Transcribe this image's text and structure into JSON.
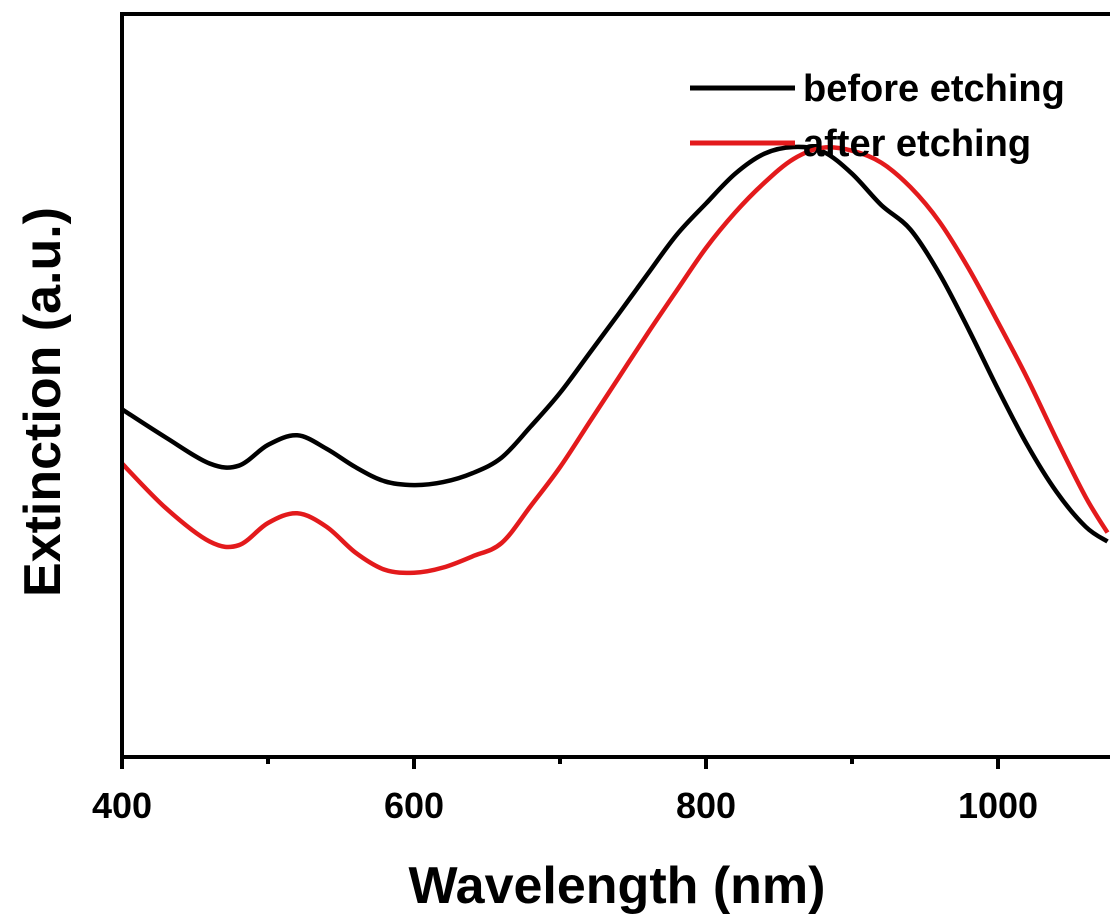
{
  "chart_data": {
    "type": "line",
    "xlabel": "Wavelength (nm)",
    "ylabel": "Extinction (a.u.)",
    "xlim": [
      400,
      1075
    ],
    "ylim": [
      0,
      1.0
    ],
    "x_ticks_major": [
      400,
      600,
      800,
      1000
    ],
    "x_tick_labels": [
      "400",
      "600",
      "800",
      "1000"
    ],
    "x_ticks_minor": [
      500,
      700,
      900
    ],
    "y_ticks": [],
    "grid": false,
    "legend_position": "top-right",
    "series": [
      {
        "name": "before etching",
        "color": "#000000",
        "x": [
          400,
          430,
          460,
          480,
          500,
          520,
          540,
          560,
          580,
          600,
          620,
          640,
          660,
          680,
          700,
          720,
          740,
          760,
          780,
          800,
          820,
          840,
          860,
          880,
          900,
          920,
          940,
          960,
          980,
          1000,
          1020,
          1040,
          1060,
          1075
        ],
        "y": [
          0.468,
          0.43,
          0.395,
          0.392,
          0.42,
          0.433,
          0.415,
          0.39,
          0.371,
          0.366,
          0.37,
          0.382,
          0.403,
          0.445,
          0.49,
          0.543,
          0.596,
          0.65,
          0.703,
          0.745,
          0.785,
          0.812,
          0.821,
          0.815,
          0.785,
          0.743,
          0.71,
          0.65,
          0.575,
          0.495,
          0.42,
          0.357,
          0.31,
          0.29
        ]
      },
      {
        "name": "after etching",
        "color": "#e31a1c",
        "x": [
          400,
          430,
          460,
          480,
          500,
          520,
          540,
          560,
          580,
          600,
          620,
          640,
          660,
          680,
          700,
          720,
          740,
          760,
          780,
          800,
          820,
          840,
          860,
          880,
          900,
          920,
          940,
          960,
          980,
          1000,
          1020,
          1040,
          1060,
          1075
        ],
        "y": [
          0.395,
          0.335,
          0.29,
          0.285,
          0.315,
          0.328,
          0.31,
          0.275,
          0.252,
          0.248,
          0.255,
          0.27,
          0.288,
          0.338,
          0.39,
          0.45,
          0.51,
          0.57,
          0.628,
          0.685,
          0.733,
          0.773,
          0.805,
          0.82,
          0.816,
          0.8,
          0.767,
          0.72,
          0.657,
          0.585,
          0.51,
          0.428,
          0.35,
          0.302
        ]
      }
    ]
  }
}
